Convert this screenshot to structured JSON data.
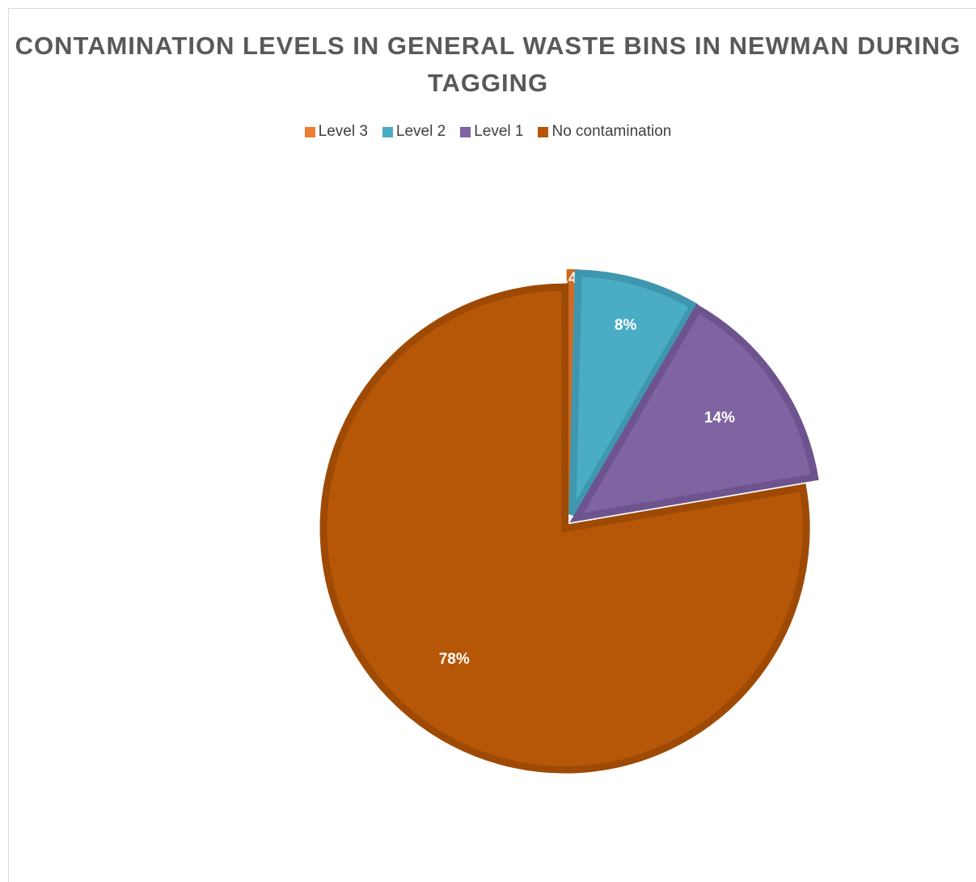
{
  "chart_data": {
    "type": "pie",
    "title": "CONTAMINATION LEVELS IN GENERAL WASTE BINS IN NEWMAN DURING TAGGING",
    "categories": [
      "Level 3",
      "Level 2",
      "Level 1",
      "No contamination"
    ],
    "values": [
      0.4,
      8,
      14,
      78
    ],
    "data_labels": [
      "0.4%",
      "8%",
      "14%",
      "78%"
    ],
    "colors": [
      "#ED7D31",
      "#4BACC6",
      "#8064A2",
      "#B65708"
    ],
    "border_colors": [
      "#D06A22",
      "#3E97AF",
      "#6E548F",
      "#9E4A05"
    ],
    "legend_position": "top",
    "start_angle_deg": 0,
    "direction": "clockwise",
    "exploded": true
  }
}
